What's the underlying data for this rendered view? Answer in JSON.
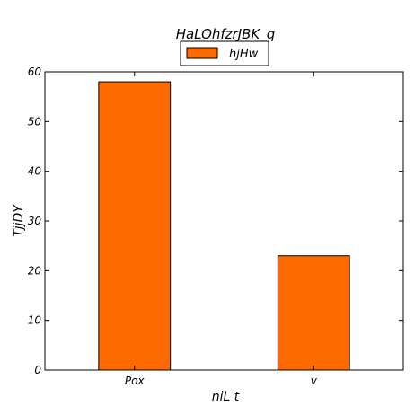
{
  "chart_data": {
    "type": "bar",
    "title": "HaLOhfzrJBK_q",
    "xlabel": "niL t",
    "ylabel": "TjjDY",
    "categories": [
      "Pox",
      "v"
    ],
    "series": [
      {
        "name": "hjHw",
        "values": [
          58,
          23
        ],
        "color": "#ff6a00"
      }
    ],
    "ylim": [
      0,
      60
    ],
    "yticks": [
      0,
      10,
      20,
      30,
      40,
      50,
      60
    ],
    "grid": false,
    "legend_position": "top-center"
  }
}
